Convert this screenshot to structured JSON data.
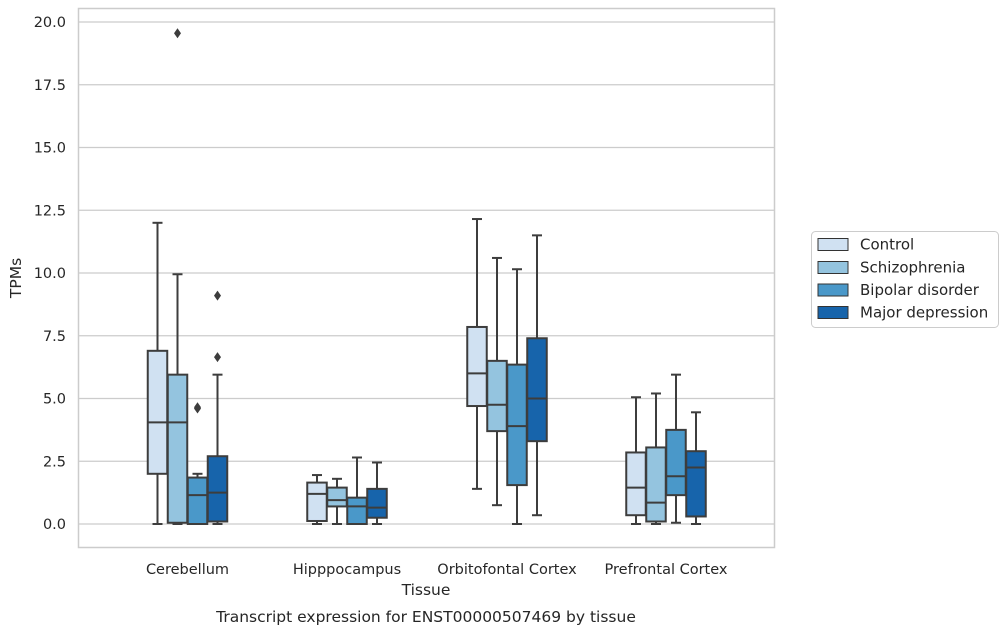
{
  "chart_data": {
    "type": "boxplot",
    "title": "",
    "caption": "Transcript expression for ENST00000507469 by tissue",
    "xlabel": "Tissue",
    "ylabel": "TPMs",
    "ylim": [
      -0.95,
      20.5
    ],
    "yticks": [
      0.0,
      2.5,
      5.0,
      7.5,
      10.0,
      12.5,
      15.0,
      17.5,
      20.0
    ],
    "ytick_labels": [
      "0.0",
      "2.5",
      "5.0",
      "7.5",
      "10.0",
      "12.5",
      "15.0",
      "17.5",
      "20.0"
    ],
    "grid": true,
    "legend_position": "right",
    "categories": [
      "Cerebellum",
      "Hipppocampus",
      "Orbitofontal Cortex",
      "Prefrontal Cortex"
    ],
    "series": [
      {
        "name": "Control",
        "color": "#d0e1f2",
        "boxes": [
          {
            "q1": 2.0,
            "median": 4.05,
            "q3": 6.9,
            "whisker_low": 0.0,
            "whisker_high": 12.0,
            "outliers": []
          },
          {
            "q1": 0.12,
            "median": 1.2,
            "q3": 1.65,
            "whisker_low": 0.0,
            "whisker_high": 1.95,
            "outliers": []
          },
          {
            "q1": 4.7,
            "median": 6.0,
            "q3": 7.85,
            "whisker_low": 1.4,
            "whisker_high": 12.15,
            "outliers": []
          },
          {
            "q1": 0.35,
            "median": 1.45,
            "q3": 2.85,
            "whisker_low": 0.0,
            "whisker_high": 5.05,
            "outliers": []
          }
        ]
      },
      {
        "name": "Schizophrenia",
        "color": "#94c4df",
        "boxes": [
          {
            "q1": 0.05,
            "median": 4.05,
            "q3": 5.95,
            "whisker_low": 0.0,
            "whisker_high": 9.95,
            "outliers": [
              19.55
            ]
          },
          {
            "q1": 0.7,
            "median": 0.95,
            "q3": 1.45,
            "whisker_low": 0.0,
            "whisker_high": 1.8,
            "outliers": []
          },
          {
            "q1": 3.7,
            "median": 4.75,
            "q3": 6.5,
            "whisker_low": 0.75,
            "whisker_high": 10.6,
            "outliers": []
          },
          {
            "q1": 0.1,
            "median": 0.85,
            "q3": 3.05,
            "whisker_low": 0.0,
            "whisker_high": 5.2,
            "outliers": []
          }
        ]
      },
      {
        "name": "Bipolar disorder",
        "color": "#4a98c9",
        "boxes": [
          {
            "q1": 0.0,
            "median": 1.15,
            "q3": 1.85,
            "whisker_low": 0.0,
            "whisker_high": 2.0,
            "outliers": [
              4.6,
              4.65
            ]
          },
          {
            "q1": 0.0,
            "median": 0.7,
            "q3": 1.05,
            "whisker_low": 0.0,
            "whisker_high": 2.65,
            "outliers": []
          },
          {
            "q1": 1.55,
            "median": 3.9,
            "q3": 6.35,
            "whisker_low": 0.0,
            "whisker_high": 10.15,
            "outliers": []
          },
          {
            "q1": 1.15,
            "median": 1.9,
            "q3": 3.75,
            "whisker_low": 0.05,
            "whisker_high": 5.95,
            "outliers": []
          }
        ]
      },
      {
        "name": "Major depression",
        "color": "#1764ab",
        "boxes": [
          {
            "q1": 0.1,
            "median": 1.25,
            "q3": 2.7,
            "whisker_low": 0.0,
            "whisker_high": 5.95,
            "outliers": [
              6.65,
              9.1
            ]
          },
          {
            "q1": 0.25,
            "median": 0.65,
            "q3": 1.4,
            "whisker_low": 0.0,
            "whisker_high": 2.45,
            "outliers": []
          },
          {
            "q1": 3.3,
            "median": 5.0,
            "q3": 7.4,
            "whisker_low": 0.35,
            "whisker_high": 11.5,
            "outliers": []
          },
          {
            "q1": 0.3,
            "median": 2.25,
            "q3": 2.9,
            "whisker_low": 0.0,
            "whisker_high": 4.45,
            "outliers": []
          }
        ]
      }
    ]
  }
}
